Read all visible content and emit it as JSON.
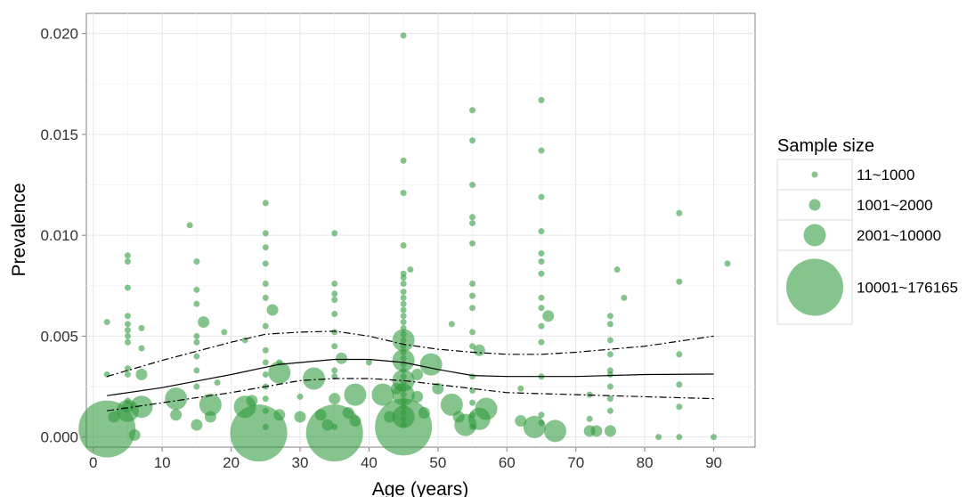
{
  "chart_data": {
    "type": "scatter",
    "xlabel": "Age (years)",
    "ylabel": "Prevalence",
    "xlim": [
      -1,
      96
    ],
    "ylim": [
      -0.0005,
      0.021
    ],
    "xticks": [
      "0",
      "10",
      "20",
      "30",
      "40",
      "50",
      "60",
      "70",
      "80",
      "90"
    ],
    "yticks": [
      "0.000",
      "0.005",
      "0.010",
      "0.015",
      "0.020"
    ],
    "grid": true,
    "point_color": "#2e9a3a",
    "legend": {
      "title": "Sample size",
      "placement": "right",
      "entries": [
        "11~1000",
        "1001~2000",
        "2001~10000",
        "10001~176165"
      ]
    },
    "size_classes": [
      1,
      2,
      3,
      4
    ],
    "points": [
      [
        2,
        0.0004,
        4
      ],
      [
        3,
        0.001,
        2
      ],
      [
        5,
        0.0013,
        3
      ],
      [
        5,
        0.0015,
        2
      ],
      [
        5,
        0.0047,
        1
      ],
      [
        5,
        0.005,
        1
      ],
      [
        5,
        0.0053,
        1
      ],
      [
        5,
        0.0056,
        1
      ],
      [
        5,
        0.006,
        1
      ],
      [
        5,
        0.0074,
        1
      ],
      [
        5,
        0.0087,
        1
      ],
      [
        5,
        0.009,
        1
      ],
      [
        5,
        0.0018,
        1
      ],
      [
        5,
        0.0034,
        1
      ],
      [
        5,
        0.0031,
        1
      ],
      [
        6,
        0.0001,
        2
      ],
      [
        7,
        0.0015,
        3
      ],
      [
        7,
        0.0031,
        2
      ],
      [
        7,
        0.0044,
        1
      ],
      [
        7,
        0.0054,
        1
      ],
      [
        2,
        0.0057,
        1
      ],
      [
        2,
        0.0031,
        1
      ],
      [
        12,
        0.0019,
        3
      ],
      [
        12,
        0.0011,
        2
      ],
      [
        14,
        0.0105,
        1
      ],
      [
        15,
        0.0087,
        1
      ],
      [
        15,
        0.0073,
        1
      ],
      [
        15,
        0.0066,
        1
      ],
      [
        15,
        0.005,
        1
      ],
      [
        15,
        0.0047,
        1
      ],
      [
        15,
        0.004,
        1
      ],
      [
        15,
        0.0033,
        1
      ],
      [
        15,
        0.0025,
        1
      ],
      [
        15,
        0.0006,
        2
      ],
      [
        16,
        0.0057,
        2
      ],
      [
        17,
        0.0016,
        3
      ],
      [
        17,
        0.001,
        2
      ],
      [
        18,
        0.0027,
        1
      ],
      [
        19,
        0.0052,
        1
      ],
      [
        22,
        0.0015,
        3
      ],
      [
        22,
        0.0048,
        1
      ],
      [
        23,
        0.0018,
        2
      ],
      [
        24,
        0.0002,
        4
      ],
      [
        25,
        0.0116,
        1
      ],
      [
        25,
        0.0101,
        1
      ],
      [
        25,
        0.0094,
        1
      ],
      [
        25,
        0.0086,
        1
      ],
      [
        25,
        0.0076,
        1
      ],
      [
        25,
        0.0069,
        1
      ],
      [
        25,
        0.0055,
        1
      ],
      [
        25,
        0.0043,
        1
      ],
      [
        25,
        0.0037,
        1
      ],
      [
        25,
        0.0031,
        1
      ],
      [
        25,
        0.0025,
        1
      ],
      [
        25,
        0.0019,
        1
      ],
      [
        25,
        0.0013,
        1
      ],
      [
        25,
        0.0005,
        1
      ],
      [
        26,
        0.0063,
        2
      ],
      [
        27,
        0.0032,
        3
      ],
      [
        27,
        0.0011,
        2
      ],
      [
        27,
        0.0037,
        1
      ],
      [
        30,
        0.001,
        2
      ],
      [
        30,
        0.002,
        1
      ],
      [
        32,
        0.0029,
        3
      ],
      [
        33,
        0.0011,
        2
      ],
      [
        34,
        0.0006,
        2
      ],
      [
        35,
        0.0101,
        1
      ],
      [
        35,
        0.0076,
        1
      ],
      [
        35,
        0.0071,
        1
      ],
      [
        35,
        0.0068,
        1
      ],
      [
        35,
        0.0061,
        1
      ],
      [
        35,
        0.0052,
        1
      ],
      [
        35,
        0.0045,
        1
      ],
      [
        35,
        0.0033,
        1
      ],
      [
        35,
        0.003,
        1
      ],
      [
        35,
        0.0005,
        1
      ],
      [
        35,
        0.0019,
        2
      ],
      [
        35,
        0.0002,
        4
      ],
      [
        36,
        0.0039,
        2
      ],
      [
        37,
        0.0012,
        2
      ],
      [
        38,
        0.0021,
        3
      ],
      [
        38,
        0.0008,
        2
      ],
      [
        40,
        0.0037,
        1
      ],
      [
        42,
        0.0021,
        3
      ],
      [
        43,
        0.001,
        2
      ],
      [
        44,
        0.0024,
        2
      ],
      [
        45,
        0.0199,
        1
      ],
      [
        45,
        0.0137,
        1
      ],
      [
        45,
        0.0121,
        1
      ],
      [
        45,
        0.0095,
        1
      ],
      [
        45,
        0.0081,
        1
      ],
      [
        45,
        0.0079,
        1
      ],
      [
        45,
        0.0076,
        1
      ],
      [
        45,
        0.0072,
        1
      ],
      [
        45,
        0.0069,
        1
      ],
      [
        45,
        0.0066,
        1
      ],
      [
        45,
        0.0063,
        1
      ],
      [
        45,
        0.006,
        1
      ],
      [
        45,
        0.0057,
        1
      ],
      [
        45,
        0.0054,
        1
      ],
      [
        45,
        0.0051,
        1
      ],
      [
        45,
        0.0048,
        1
      ],
      [
        45,
        0.0045,
        1
      ],
      [
        45,
        0.0042,
        1
      ],
      [
        45,
        0.0039,
        1
      ],
      [
        45,
        0.0036,
        1
      ],
      [
        45,
        0.0033,
        1
      ],
      [
        45,
        0.003,
        1
      ],
      [
        45,
        0.0027,
        1
      ],
      [
        45,
        0.0024,
        1
      ],
      [
        45,
        0.0021,
        1
      ],
      [
        45,
        0.0018,
        1
      ],
      [
        45,
        0.0015,
        1
      ],
      [
        45,
        0.0012,
        1
      ],
      [
        45,
        0.0009,
        1
      ],
      [
        45,
        0.0006,
        1
      ],
      [
        45,
        0.0048,
        3
      ],
      [
        45,
        0.0038,
        3
      ],
      [
        45,
        0.0028,
        3
      ],
      [
        45,
        0.0021,
        3
      ],
      [
        45,
        0.001,
        3
      ],
      [
        45,
        0.0005,
        4
      ],
      [
        46,
        0.0083,
        1
      ],
      [
        47,
        0.0031,
        2
      ],
      [
        47,
        0.002,
        2
      ],
      [
        48,
        0.0012,
        2
      ],
      [
        49,
        0.0036,
        3
      ],
      [
        50,
        0.0024,
        2
      ],
      [
        52,
        0.0016,
        3
      ],
      [
        52,
        0.0056,
        1
      ],
      [
        53,
        0.001,
        2
      ],
      [
        54,
        0.0006,
        3
      ],
      [
        55,
        0.0162,
        1
      ],
      [
        55,
        0.0147,
        1
      ],
      [
        55,
        0.0125,
        1
      ],
      [
        55,
        0.0109,
        1
      ],
      [
        55,
        0.0106,
        1
      ],
      [
        55,
        0.0096,
        1
      ],
      [
        55,
        0.0076,
        1
      ],
      [
        55,
        0.007,
        1
      ],
      [
        55,
        0.0064,
        1
      ],
      [
        55,
        0.0052,
        1
      ],
      [
        55,
        0.0045,
        1
      ],
      [
        55,
        0.003,
        1
      ],
      [
        55,
        0.0023,
        1
      ],
      [
        55,
        0.0017,
        1
      ],
      [
        55,
        0.0011,
        1
      ],
      [
        55,
        0.0005,
        1
      ],
      [
        56,
        0.0043,
        2
      ],
      [
        56,
        0.0009,
        3
      ],
      [
        57,
        0.0014,
        3
      ],
      [
        62,
        0.0008,
        2
      ],
      [
        62,
        0.0024,
        1
      ],
      [
        64,
        0.0005,
        3
      ],
      [
        65,
        0.0167,
        1
      ],
      [
        65,
        0.0142,
        1
      ],
      [
        65,
        0.0119,
        1
      ],
      [
        65,
        0.0102,
        1
      ],
      [
        65,
        0.0091,
        1
      ],
      [
        65,
        0.0087,
        1
      ],
      [
        65,
        0.0081,
        1
      ],
      [
        65,
        0.0069,
        1
      ],
      [
        65,
        0.0064,
        1
      ],
      [
        65,
        0.0055,
        1
      ],
      [
        65,
        0.0047,
        1
      ],
      [
        65,
        0.003,
        1
      ],
      [
        65,
        0.0011,
        1
      ],
      [
        65,
        0.0007,
        1
      ],
      [
        66,
        0.006,
        2
      ],
      [
        67,
        0.0003,
        3
      ],
      [
        72,
        0.0021,
        1
      ],
      [
        72,
        0.0003,
        2
      ],
      [
        72,
        0.0009,
        1
      ],
      [
        73,
        0.0003,
        2
      ],
      [
        75,
        0.006,
        1
      ],
      [
        75,
        0.0056,
        1
      ],
      [
        75,
        0.0048,
        1
      ],
      [
        75,
        0.0041,
        1
      ],
      [
        75,
        0.0033,
        1
      ],
      [
        75,
        0.0031,
        1
      ],
      [
        75,
        0.0025,
        1
      ],
      [
        75,
        0.0019,
        1
      ],
      [
        75,
        0.0013,
        1
      ],
      [
        75,
        0.0003,
        2
      ],
      [
        76,
        0.0083,
        1
      ],
      [
        77,
        0.0069,
        1
      ],
      [
        82,
        0.0,
        1
      ],
      [
        85,
        0.0111,
        1
      ],
      [
        85,
        0.0077,
        1
      ],
      [
        85,
        0.0041,
        1
      ],
      [
        85,
        0.0026,
        1
      ],
      [
        85,
        0.0015,
        1
      ],
      [
        85,
        0.0,
        1
      ],
      [
        90,
        0.0,
        1
      ],
      [
        92,
        0.0086,
        1
      ]
    ],
    "fit_line": {
      "x": [
        2,
        10,
        20,
        27,
        35,
        40,
        45,
        50,
        55,
        60,
        70,
        80,
        90
      ],
      "y": [
        0.00205,
        0.00245,
        0.0031,
        0.0036,
        0.00385,
        0.00385,
        0.0037,
        0.00335,
        0.00305,
        0.003,
        0.003,
        0.0031,
        0.00312
      ]
    },
    "upper_ci": {
      "x": [
        2,
        10,
        20,
        25,
        30,
        35,
        40,
        45,
        50,
        55,
        60,
        65,
        70,
        80,
        90
      ],
      "y": [
        0.003,
        0.0038,
        0.0047,
        0.0051,
        0.0052,
        0.00525,
        0.005,
        0.0046,
        0.00435,
        0.0042,
        0.0041,
        0.0041,
        0.0042,
        0.0045,
        0.005
      ]
    },
    "lower_ci": {
      "x": [
        2,
        10,
        20,
        30,
        35,
        40,
        45,
        50,
        55,
        60,
        65,
        70,
        80,
        90
      ],
      "y": [
        0.0013,
        0.0017,
        0.0022,
        0.0028,
        0.0029,
        0.0029,
        0.0028,
        0.0026,
        0.0024,
        0.0022,
        0.00215,
        0.0021,
        0.002,
        0.0019
      ]
    }
  }
}
